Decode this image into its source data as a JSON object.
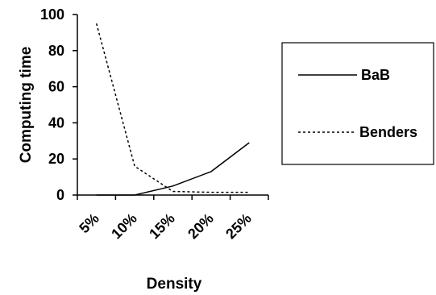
{
  "chart_data": {
    "type": "line",
    "x": [
      "5%",
      "10%",
      "15%",
      "20%",
      "25%"
    ],
    "xlabel": "Density",
    "ylabel": "Computing time",
    "yticks": [
      "0",
      "20",
      "40",
      "60",
      "80",
      "100"
    ],
    "ylim": [
      0,
      100
    ],
    "grid": false,
    "legend_position": "right",
    "series": [
      {
        "name": "BaB",
        "style": "solid",
        "color": "#000000",
        "values": [
          0,
          0,
          5,
          13,
          29
        ]
      },
      {
        "name": "Benders",
        "style": "dotted",
        "color": "#000000",
        "values": [
          95,
          16,
          2,
          1.5,
          1.5
        ]
      }
    ]
  }
}
